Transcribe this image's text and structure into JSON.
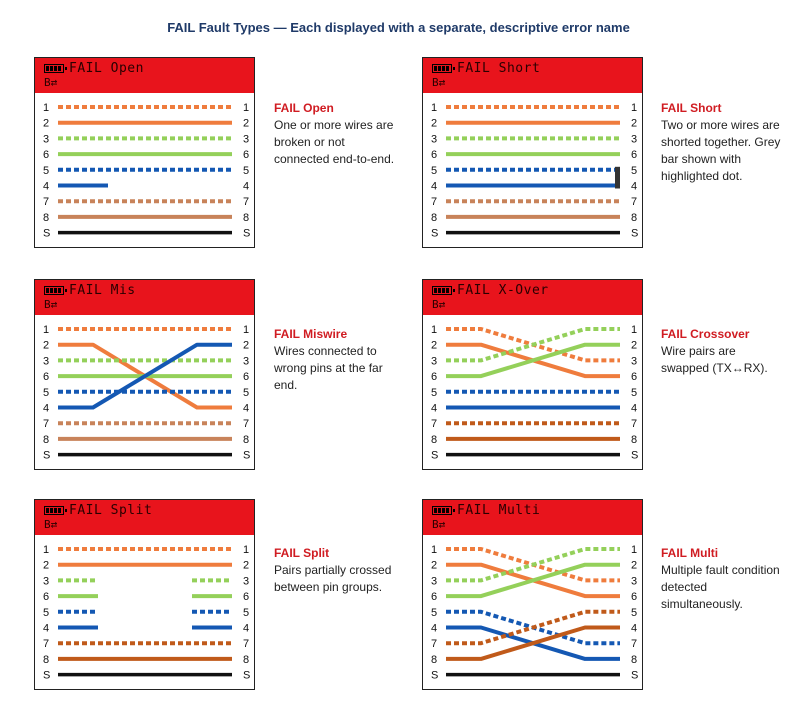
{
  "page_title": "FAIL Fault Types — Each displayed with a separate, descriptive error name",
  "header_sub": "B⇄",
  "pin_labels": [
    "1",
    "2",
    "3",
    "6",
    "5",
    "4",
    "7",
    "8",
    "S"
  ],
  "colors": {
    "header_red": "#e8141c",
    "orange": "#ef7c3d",
    "green": "#94d05a",
    "blue": "#1458b3",
    "brown": "#c8835a",
    "dark_brown": "#c05a1a",
    "black": "#111111",
    "title_navy": "#1f3a68",
    "fault_red": "#d01c22"
  },
  "panels": [
    {
      "id": "open",
      "header_title": "FAIL Open",
      "desc_title": "FAIL Open",
      "desc_text": "One or more wires are broken or not connected end-to-end."
    },
    {
      "id": "short",
      "header_title": "FAIL Short",
      "desc_title": "FAIL Short",
      "desc_text": "Two or more wires are shorted together. Grey bar shown with highlighted dot."
    },
    {
      "id": "mis",
      "header_title": "FAIL Mis",
      "desc_title": "FAIL Miswire",
      "desc_text": "Wires connected to wrong pins at the far end."
    },
    {
      "id": "xover",
      "header_title": "FAIL X-Over",
      "desc_title": "FAIL Crossover",
      "desc_text": "Wire pairs are swapped (TX↔RX)."
    },
    {
      "id": "split",
      "header_title": "FAIL Split",
      "desc_title": "FAIL Split",
      "desc_text": "Pairs partially crossed between pin groups."
    },
    {
      "id": "multi",
      "header_title": "FAIL Multi",
      "desc_title": "FAIL Multi",
      "desc_text": "Multiple fault condition detected simultaneously."
    }
  ]
}
